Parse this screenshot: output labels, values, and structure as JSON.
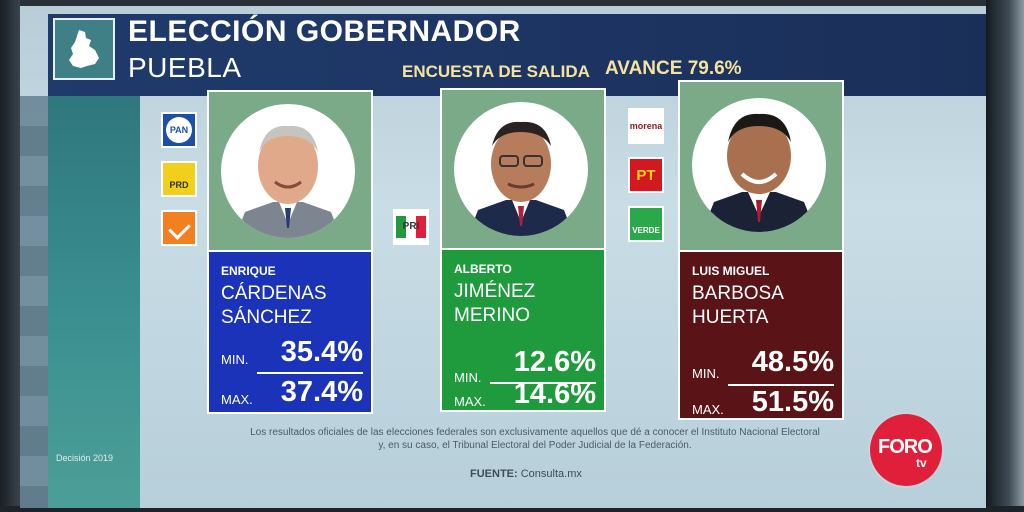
{
  "header": {
    "title": "ELECCIÓN GOBERNADOR",
    "subtitle": "PUEBLA",
    "exit_poll_label": "ENCUESTA DE SALIDA",
    "progress_label": "AVANCE 79.6%"
  },
  "parties": {
    "pan": "PAN",
    "prd": "PRD",
    "mc": "",
    "pri": "PRI",
    "morena": "morena",
    "pt": "PT",
    "verde": "VERDE"
  },
  "candidates": [
    {
      "first_name": "ENRIQUE",
      "last_name_1": "CÁRDENAS",
      "last_name_2": "SÁNCHEZ",
      "min_label": "MIN.",
      "min_value": "35.4%",
      "max_label": "MAX.",
      "max_value": "37.4%",
      "color": "#1b33b8"
    },
    {
      "first_name": "ALBERTO",
      "last_name_1": "JIMÉNEZ",
      "last_name_2": "MERINO",
      "min_label": "MIN.",
      "min_value": "12.6%",
      "max_label": "MAX.",
      "max_value": "14.6%",
      "color": "#1f9a3d"
    },
    {
      "first_name": "LUIS MIGUEL",
      "last_name_1": "BARBOSA",
      "last_name_2": "HUERTA",
      "min_label": "MIN.",
      "min_value": "48.5%",
      "max_label": "MAX.",
      "max_value": "51.5%",
      "color": "#5a1418"
    }
  ],
  "footer": {
    "disclaimer_line1": "Los resultados oficiales de las elecciones federales son exclusivamente aquellos que dé a conocer el Instituto Nacional Electoral",
    "disclaimer_line2": "y, en su caso, el Tribunal Electoral del Poder Judicial de la Federación.",
    "source_label": "FUENTE:",
    "source_value": "Consulta.mx",
    "decision": "Decisión 2019",
    "broadcaster_main": "FORO",
    "broadcaster_sub": "tv"
  },
  "colors": {
    "header": "#1f3b6b",
    "accent_yellow": "#f4e4a0",
    "photo_bg": "#7aaa87",
    "broadcaster_red": "#e0203a"
  }
}
